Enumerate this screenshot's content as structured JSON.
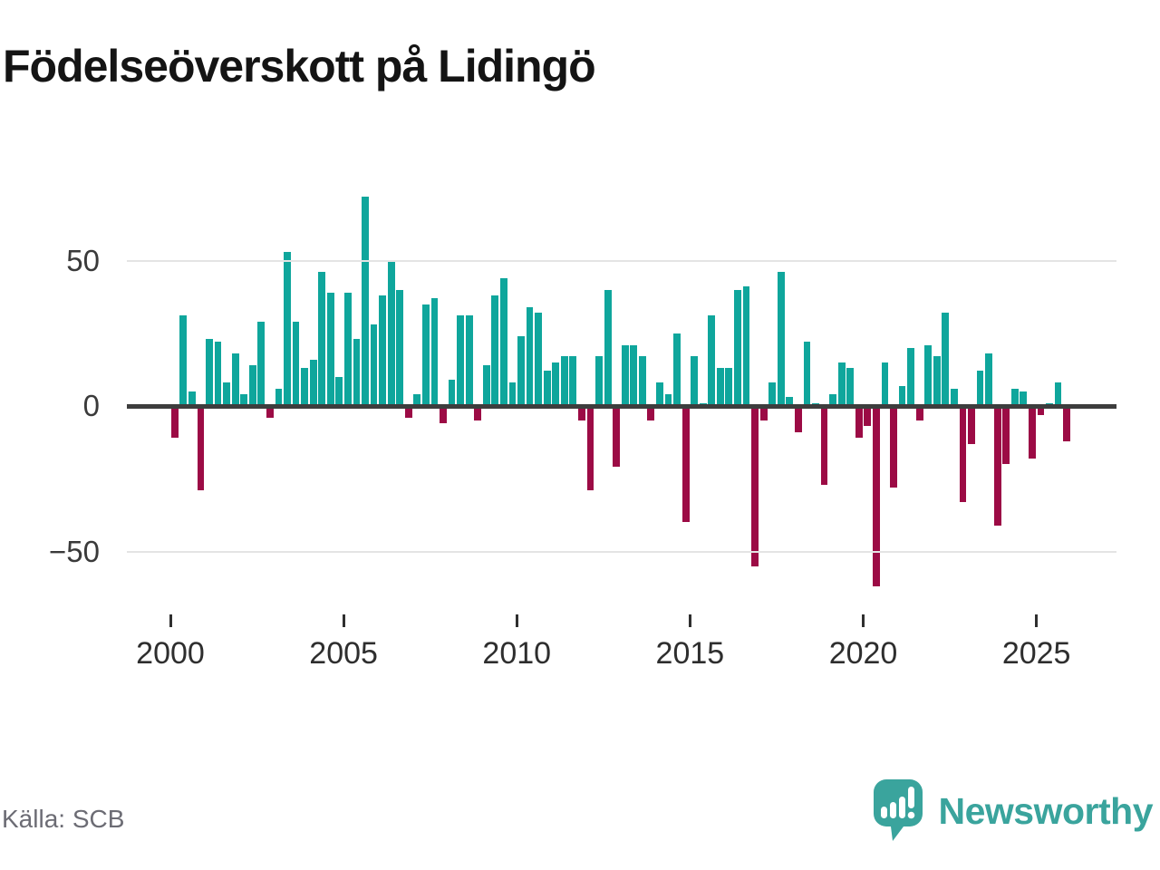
{
  "title": "Födelseöverskott på Lidingö",
  "source": "Källa: SCB",
  "branding": {
    "name": "Newsworthy",
    "logo_icon": "speech-bubble-bar-chart-icon",
    "color": "#3aa49d"
  },
  "chart_data": {
    "type": "bar",
    "title": "Födelseöverskott på Lidingö",
    "freq": "quarterly",
    "start_period": "2000-Q1",
    "end_period": "2025-Q4",
    "ylim": [
      -72,
      80
    ],
    "grid": "horizontal",
    "yticks": [
      {
        "label": "50",
        "value": 50
      },
      {
        "label": "0",
        "value": 0
      },
      {
        "label": "−50",
        "value": -50
      }
    ],
    "xticks": [
      {
        "label": "2000",
        "year": 2000
      },
      {
        "label": "2005",
        "year": 2005
      },
      {
        "label": "2010",
        "year": 2010
      },
      {
        "label": "2015",
        "year": 2015
      },
      {
        "label": "2020",
        "year": 2020
      },
      {
        "label": "2025",
        "year": 2025
      }
    ],
    "colors": {
      "positive": "#0fa69c",
      "negative": "#9c0b45"
    },
    "series": [
      {
        "name": "Födelseöverskott",
        "values": [
          -11,
          31,
          5,
          -29,
          23,
          22,
          8,
          18,
          4,
          14,
          29,
          -4,
          6,
          53,
          29,
          13,
          16,
          46,
          39,
          10,
          39,
          23,
          72,
          28,
          38,
          50,
          40,
          -4,
          4,
          35,
          37,
          -6,
          9,
          31,
          31,
          -5,
          14,
          38,
          44,
          8,
          24,
          34,
          32,
          12,
          15,
          17,
          17,
          -5,
          -29,
          17,
          40,
          -21,
          21,
          21,
          17,
          -5,
          8,
          4,
          25,
          -40,
          17,
          1,
          31,
          13,
          13,
          40,
          41,
          -55,
          -5,
          8,
          46,
          3,
          -9,
          22,
          1,
          -27,
          4,
          15,
          13,
          -11,
          -7,
          -62,
          15,
          -28,
          7,
          20,
          -5,
          21,
          17,
          32,
          6,
          -33,
          -13,
          12,
          18,
          -41,
          -20,
          6,
          5,
          -18,
          -3,
          1,
          8,
          -12
        ]
      }
    ]
  }
}
